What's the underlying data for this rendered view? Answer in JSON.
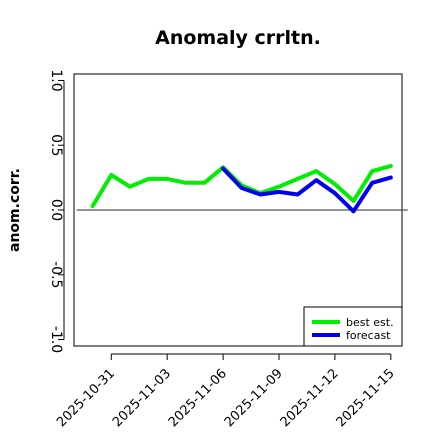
{
  "chart_data": {
    "type": "line",
    "title": "Anomaly crrltn.",
    "ylabel": "anom.corr.",
    "xlabel": "",
    "ylim": [
      -1.05,
      1.05
    ],
    "yticks": [
      -1.0,
      -0.5,
      0.0,
      0.5,
      1.0
    ],
    "ytick_labels": [
      "-1.0",
      "-0.5",
      "0.0",
      "0.5",
      "1.0"
    ],
    "xlim": [
      "2025-10-29",
      "2025-11-15.6"
    ],
    "xticks": [
      "2025-10-31",
      "2025-11-03",
      "2025-11-06",
      "2025-11-09",
      "2025-11-12",
      "2025-11-15"
    ],
    "xtick_labels": [
      "2025-10-31",
      "2025-11-03",
      "2025-11-06",
      "2025-11-09",
      "2025-11-12",
      "2025-11-15"
    ],
    "highlight_tick": "2025-11-06",
    "highlight_color": "#228b22",
    "reference_line": 0.0,
    "grid": false,
    "legend_position": "bottom-right",
    "series": [
      {
        "name": "best est.",
        "color": "#00ee00",
        "x": [
          "2025-10-30",
          "2025-10-31",
          "2025-11-01",
          "2025-11-02",
          "2025-11-03",
          "2025-11-04",
          "2025-11-05",
          "2025-11-06",
          "2025-11-07",
          "2025-11-08",
          "2025-11-09",
          "2025-11-10",
          "2025-11-11",
          "2025-11-12",
          "2025-11-13",
          "2025-11-14",
          "2025-11-15"
        ],
        "values": [
          0.03,
          0.27,
          0.18,
          0.24,
          0.24,
          0.21,
          0.21,
          0.33,
          0.19,
          0.13,
          0.18,
          0.24,
          0.3,
          0.2,
          0.07,
          0.3,
          0.34
        ]
      },
      {
        "name": "forecast",
        "color": "#0000ee",
        "x": [
          "2025-11-06",
          "2025-11-07",
          "2025-11-08",
          "2025-11-09",
          "2025-11-10",
          "2025-11-11",
          "2025-11-12",
          "2025-11-13",
          "2025-11-14",
          "2025-11-15"
        ],
        "values": [
          0.32,
          0.17,
          0.12,
          0.14,
          0.12,
          0.23,
          0.13,
          -0.01,
          0.21,
          0.25
        ]
      }
    ]
  }
}
